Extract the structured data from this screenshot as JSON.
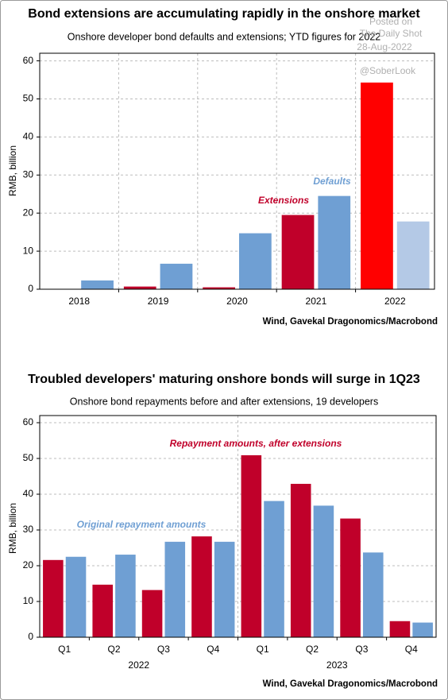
{
  "chart_data": [
    {
      "type": "bar",
      "title": "Bond extensions are accumulating rapidly in the onshore market",
      "subtitle": "Onshore developer bond defaults and extensions; YTD figures for 2022",
      "y_label": "RMB, billion",
      "source": "Wind, Gavekal Dragonomics/Macrobond",
      "watermark": [
        "Posted on",
        "The Daily Shot",
        "28-Aug-2022",
        "@SoberLook"
      ],
      "categories": [
        "2018",
        "2019",
        "2020",
        "2021",
        "2022"
      ],
      "series": [
        {
          "name": "Extensions",
          "color": "#c0002a",
          "colors": [
            "#c0002a",
            "#c0002a",
            "#c0002a",
            "#c0002a",
            "#ff0000"
          ],
          "values": [
            0.1,
            0.7,
            0.5,
            19.5,
            54.3
          ]
        },
        {
          "name": "Defaults",
          "color": "#6f9fd3",
          "colors": [
            "#6f9fd3",
            "#6f9fd3",
            "#6f9fd3",
            "#6f9fd3",
            "#b4c9e6"
          ],
          "values": [
            2.3,
            6.7,
            14.7,
            24.5,
            17.8
          ]
        }
      ],
      "ylim": [
        0,
        62
      ],
      "yticks": [
        0,
        10,
        20,
        30,
        40,
        50,
        60
      ],
      "grid": true,
      "x_grid": true
    },
    {
      "type": "bar",
      "title": "Troubled developers' maturing onshore bonds will surge in 1Q23",
      "subtitle": "Onshore bond repayments before and after extensions, 19 developers",
      "y_label": "RMB, billion",
      "source": "Wind, Gavekal Dragonomics/Macrobond",
      "categories": [
        "Q1",
        "Q2",
        "Q3",
        "Q4",
        "Q1",
        "Q2",
        "Q3",
        "Q4"
      ],
      "category_groups": [
        "2022",
        "2023"
      ],
      "series": [
        {
          "name": "Repayment amounts, after extensions",
          "color": "#c0002a",
          "values": [
            21.6,
            14.7,
            13.2,
            28.2,
            50.9,
            42.9,
            33.2,
            4.5
          ]
        },
        {
          "name": "Original repayment amounts",
          "color": "#6f9fd3",
          "values": [
            22.5,
            23.1,
            26.7,
            26.7,
            38.1,
            36.8,
            23.7,
            4.1
          ]
        }
      ],
      "ylim": [
        0,
        62
      ],
      "yticks": [
        0,
        10,
        20,
        30,
        40,
        50,
        60
      ],
      "grid": true,
      "x_grid": false
    }
  ]
}
